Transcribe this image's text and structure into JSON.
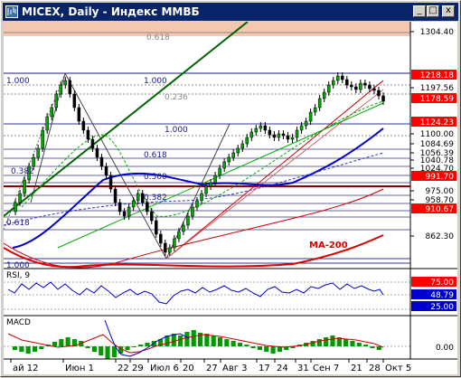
{
  "window": {
    "title": "MICEX, Daily - Индекс ММВБ",
    "minimize_glyph": "_",
    "maximize_glyph": "□",
    "close_glyph": "x",
    "icon": "chart-window-icon"
  },
  "chart_data": [
    {
      "type": "candlestick",
      "symbol": "MICEX",
      "period": "Daily",
      "annotations": [
        "MA-200"
      ],
      "fib_levels": [
        "1.000",
        "1.000",
        "0.236",
        "1.000",
        "0.618",
        "0.500",
        "0.382",
        "0.618",
        "0.382",
        "0.618",
        "1.000"
      ],
      "price_labels": [
        "1304.40",
        "1218.18",
        "1197.56",
        "1178.59",
        "1124.23",
        "1100.00",
        "1084.69",
        "1056.39",
        "1040.78",
        "1024.70",
        "991.70",
        "975.00",
        "958.70",
        "910.67",
        "862.30"
      ],
      "highlighted_prices": [
        "1218.18",
        "1178.59",
        "1124.23",
        "991.70",
        "910.67"
      ],
      "series": [
        {
          "name": "MA-200"
        }
      ],
      "colors": {
        "up": "#00aa00",
        "down": "#000000",
        "ma200": "#dd0000",
        "ma_blue": "#0000cc",
        "trend_green": "#006400"
      }
    },
    {
      "type": "line",
      "indicator": "RSI, 9",
      "levels": [
        "75.00",
        "48.79",
        "25.00"
      ],
      "current_value": "48.79"
    },
    {
      "type": "bar",
      "indicator": "MACD",
      "levels": [
        "0.00"
      ]
    }
  ],
  "x_axis": {
    "labels": [
      "ай 12",
      "Июн 1",
      "22",
      "29",
      "Июл 6",
      "20",
      "27",
      "Авг 3",
      "17",
      "24",
      "31",
      "Сен 7",
      "21",
      "28",
      "Окт 5"
    ]
  }
}
